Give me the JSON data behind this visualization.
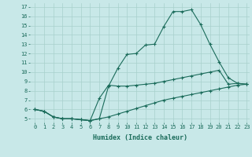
{
  "xlabel": "Humidex (Indice chaleur)",
  "ylabel": "",
  "bg_color": "#c8e8e8",
  "line_color": "#1a6b5a",
  "grid_color": "#a8d0cc",
  "xlim": [
    -0.5,
    23.3
  ],
  "ylim": [
    4.6,
    17.4
  ],
  "xticks": [
    0,
    1,
    2,
    3,
    4,
    5,
    6,
    7,
    8,
    9,
    10,
    11,
    12,
    13,
    14,
    15,
    16,
    17,
    18,
    19,
    20,
    21,
    22,
    23
  ],
  "yticks": [
    5,
    6,
    7,
    8,
    9,
    10,
    11,
    12,
    13,
    14,
    15,
    16,
    17
  ],
  "line1_x": [
    0,
    1,
    2,
    3,
    4,
    5,
    6,
    7,
    8,
    9,
    10,
    11,
    12,
    13,
    14,
    15,
    16,
    17,
    18,
    19,
    20,
    21,
    22,
    23
  ],
  "line1_y": [
    6.0,
    5.8,
    5.2,
    5.0,
    5.0,
    4.9,
    4.8,
    5.0,
    8.5,
    10.4,
    11.9,
    12.0,
    12.9,
    13.0,
    14.9,
    16.5,
    16.5,
    16.7,
    15.1,
    13.0,
    11.1,
    9.4,
    8.8,
    8.7
  ],
  "line2_x": [
    0,
    1,
    2,
    3,
    4,
    5,
    6,
    7,
    8,
    9,
    10,
    11,
    12,
    13,
    14,
    15,
    16,
    17,
    18,
    19,
    20,
    21,
    22,
    23
  ],
  "line2_y": [
    6.0,
    5.8,
    5.2,
    5.0,
    5.0,
    4.9,
    4.8,
    7.2,
    8.6,
    8.5,
    8.5,
    8.6,
    8.7,
    8.8,
    9.0,
    9.2,
    9.4,
    9.6,
    9.8,
    10.0,
    10.2,
    8.7,
    8.8,
    8.7
  ],
  "line3_x": [
    0,
    1,
    2,
    3,
    4,
    5,
    6,
    7,
    8,
    9,
    10,
    11,
    12,
    13,
    14,
    15,
    16,
    17,
    18,
    19,
    20,
    21,
    22,
    23
  ],
  "line3_y": [
    6.0,
    5.8,
    5.2,
    5.0,
    5.0,
    4.9,
    4.8,
    5.0,
    5.2,
    5.5,
    5.8,
    6.1,
    6.4,
    6.7,
    7.0,
    7.2,
    7.4,
    7.6,
    7.8,
    8.0,
    8.2,
    8.4,
    8.6,
    8.7
  ],
  "tick_fontsize": 5.0,
  "xlabel_fontsize": 6.0
}
